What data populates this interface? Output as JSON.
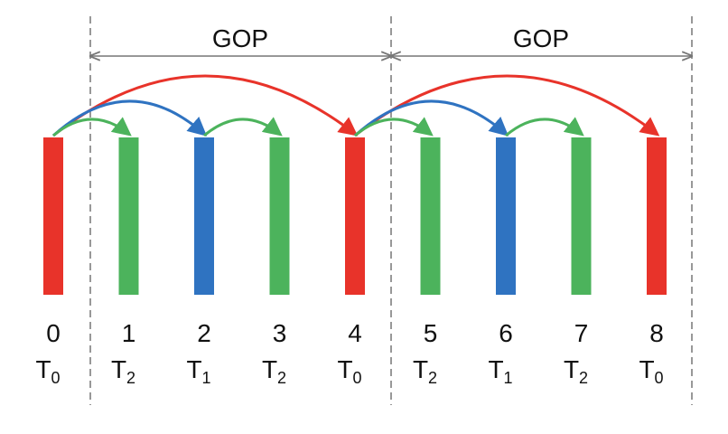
{
  "colors": {
    "T0": "#e8332a",
    "T1": "#2f73c1",
    "T2": "#4cb35c",
    "divider": "#777777",
    "bracket": "#777777"
  },
  "gops": [
    {
      "label": "GOP"
    },
    {
      "label": "GOP"
    }
  ],
  "frames": [
    {
      "index": "0",
      "layer": "T",
      "sub": "0",
      "level": "T0"
    },
    {
      "index": "1",
      "layer": "T",
      "sub": "2",
      "level": "T2"
    },
    {
      "index": "2",
      "layer": "T",
      "sub": "1",
      "level": "T1"
    },
    {
      "index": "3",
      "layer": "T",
      "sub": "2",
      "level": "T2"
    },
    {
      "index": "4",
      "layer": "T",
      "sub": "0",
      "level": "T0"
    },
    {
      "index": "5",
      "layer": "T",
      "sub": "2",
      "level": "T2"
    },
    {
      "index": "6",
      "layer": "T",
      "sub": "1",
      "level": "T1"
    },
    {
      "index": "7",
      "layer": "T",
      "sub": "2",
      "level": "T2"
    },
    {
      "index": "8",
      "layer": "T",
      "sub": "0",
      "level": "T0"
    }
  ],
  "arrows": [
    {
      "from": 0,
      "to": 4,
      "level": "T0"
    },
    {
      "from": 4,
      "to": 8,
      "level": "T0"
    },
    {
      "from": 0,
      "to": 2,
      "level": "T1"
    },
    {
      "from": 4,
      "to": 6,
      "level": "T1"
    },
    {
      "from": 0,
      "to": 1,
      "level": "T2"
    },
    {
      "from": 2,
      "to": 3,
      "level": "T2"
    },
    {
      "from": 4,
      "to": 5,
      "level": "T2"
    },
    {
      "from": 6,
      "to": 7,
      "level": "T2"
    }
  ]
}
